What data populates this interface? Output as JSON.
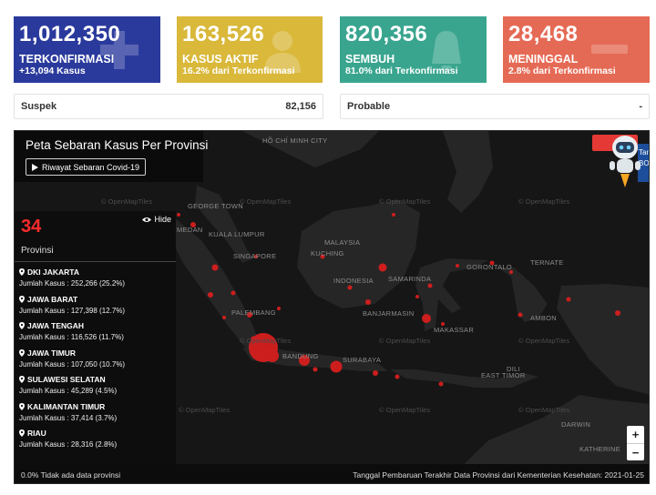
{
  "cards": {
    "confirmed": {
      "value": "1,012,350",
      "label": "TERKONFIRMASI",
      "sub": "+13,094 Kasus",
      "icon": "plus-icon",
      "color": "#2a3a9c"
    },
    "active": {
      "value": "163,526",
      "label": "KASUS AKTIF",
      "sub": "16.2% dari Terkonfirmasi",
      "icon": "patient-icon",
      "color": "#d9b83a"
    },
    "recovered": {
      "value": "820,356",
      "label": "SEMBUH",
      "sub": "81.0% dari Terkonfirmasi",
      "icon": "bell-icon",
      "color": "#3aa58f"
    },
    "deaths": {
      "value": "28,468",
      "label": "MENINGGAL",
      "sub": "2.8% dari Terkonfirmasi",
      "icon": "minus-icon",
      "color": "#e56a55"
    }
  },
  "stats": {
    "suspect": {
      "label": "Suspek",
      "value": "82,156"
    },
    "probable": {
      "label": "Probable",
      "value": "-"
    }
  },
  "map": {
    "title": "Peta Sebaran Kasus Per Provinsi",
    "history_button": "Riwayat Sebaran Covid-19",
    "hide_label": "Hide",
    "province_count": "34",
    "province_count_label": "Provinsi",
    "provinces": [
      {
        "name": "DKI JAKARTA",
        "cases": "Jumlah Kasus : 252,266 (25.2%)"
      },
      {
        "name": "JAWA BARAT",
        "cases": "Jumlah Kasus : 127,398 (12.7%)"
      },
      {
        "name": "JAWA TENGAH",
        "cases": "Jumlah Kasus : 116,526 (11.7%)"
      },
      {
        "name": "JAWA TIMUR",
        "cases": "Jumlah Kasus : 107,050 (10.7%)"
      },
      {
        "name": "SULAWESI SELATAN",
        "cases": "Jumlah Kasus : 45,289 (4.5%)"
      },
      {
        "name": "KALIMANTAN TIMUR",
        "cases": "Jumlah Kasus : 37,414 (3.7%)"
      },
      {
        "name": "RIAU",
        "cases": "Jumlah Kasus : 28,316 (2.8%)"
      }
    ],
    "place_labels": {
      "hochiminh": "HỒ CHÍ MINH CITY",
      "georgetown": "GEORGE TOWN",
      "medan": "MEDAN",
      "kualalumpur": "KUALA LUMPUR",
      "singapore": "SINGAPORE",
      "malaysia": "MALAYSIA",
      "kuching": "KUCHING",
      "indonesia": "INDONESIA",
      "gorontalo": "GORONTALO",
      "ternate": "TERNATE",
      "samarinda": "SAMARINDA",
      "banjarmasin": "BANJARMASIN",
      "makassar": "MAKASSAR",
      "ambon": "AMBON",
      "palembang": "PALEMBANG",
      "bandung": "BANDUNG",
      "surabaya": "SURABAYA",
      "easttimor": "EAST TIMOR",
      "dili": "DILI",
      "darwin": "DARWIN",
      "katherine": "KATHERINE",
      "openmaptiles": "© OpenMapTiles"
    },
    "zoom_in": "+",
    "zoom_out": "−",
    "side_panel_text": "Tan BO"
  },
  "footer": {
    "left": "0.0% Tidak ada data provinsi",
    "right": "Tanggal Pembaruan Terakhir Data Provinsi dari Kementerian Kesehatan: 2021-01-25"
  }
}
